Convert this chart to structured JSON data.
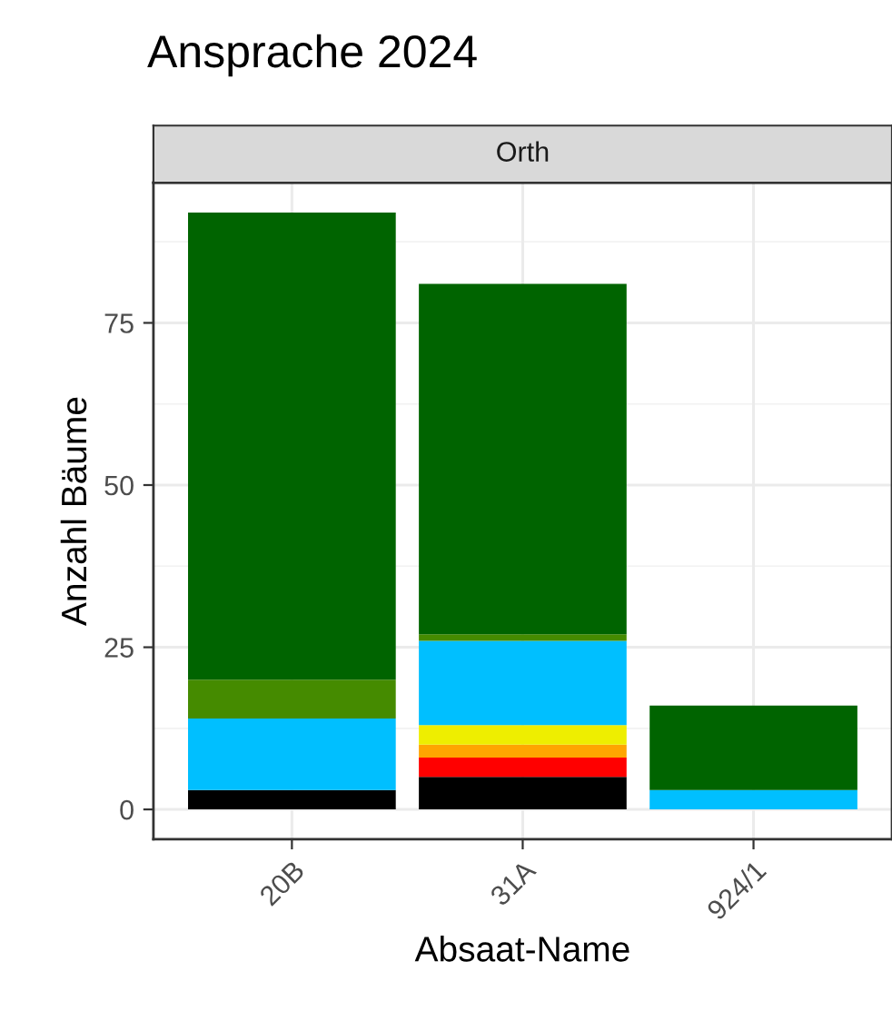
{
  "chart_data": {
    "type": "bar",
    "title": "Ansprache 2024",
    "subtitle": "Orth",
    "xlabel": "Absaat-Name",
    "ylabel": "Anzahl Bäume",
    "categories": [
      "20B",
      "31A",
      "924/1"
    ],
    "stacked": true,
    "series": [
      {
        "color": "#000000",
        "values": [
          3,
          5,
          0
        ]
      },
      {
        "color": "#ff0000",
        "values": [
          0,
          3,
          0
        ]
      },
      {
        "color": "#ffa500",
        "values": [
          0,
          2,
          0
        ]
      },
      {
        "color": "#eeee00",
        "values": [
          0,
          3,
          0
        ]
      },
      {
        "color": "#00bfff",
        "values": [
          11,
          13,
          3
        ]
      },
      {
        "color": "#458b00",
        "values": [
          6,
          1,
          0
        ]
      },
      {
        "color": "#006400",
        "values": [
          72,
          54,
          13
        ]
      }
    ],
    "ylim": [
      -4.6,
      96.6
    ],
    "yticks": [
      0,
      25,
      50,
      75
    ],
    "grid": true,
    "legend": false
  }
}
